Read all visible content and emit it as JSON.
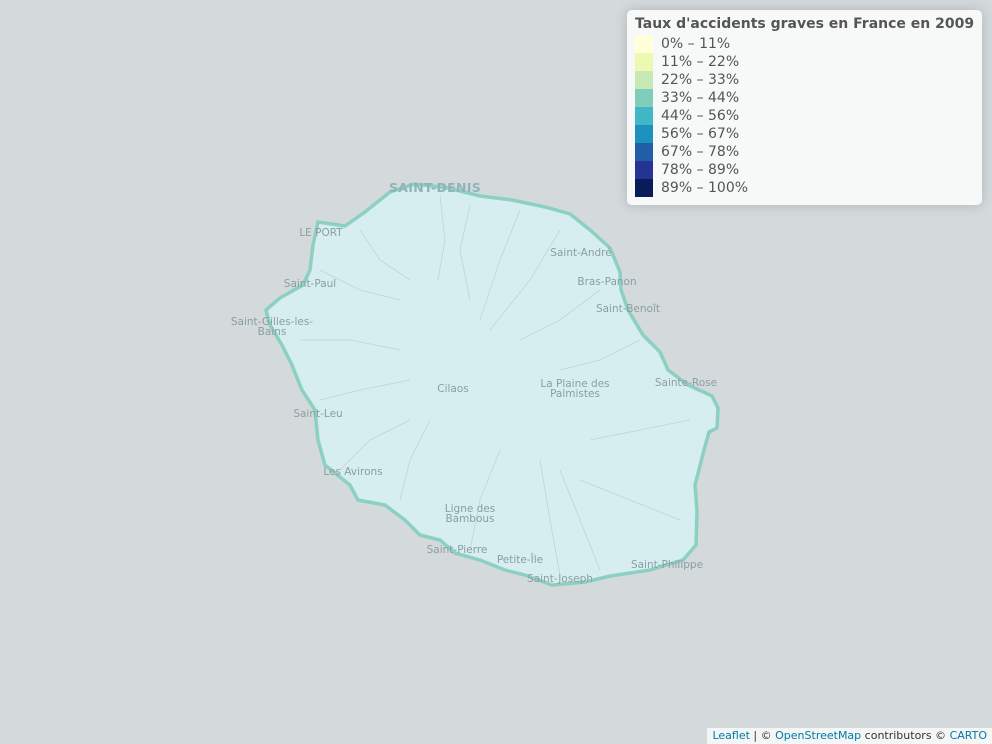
{
  "legend": {
    "title": "Taux d'accidents graves en France en 2009",
    "entries": [
      {
        "label": "0% – 11%",
        "color": "#ffffd9"
      },
      {
        "label": "11% – 22%",
        "color": "#edf8b1"
      },
      {
        "label": "22% – 33%",
        "color": "#c7e9b4"
      },
      {
        "label": "33% – 44%",
        "color": "#7fcdbb"
      },
      {
        "label": "44% – 56%",
        "color": "#41b6c4"
      },
      {
        "label": "56% – 67%",
        "color": "#1d91c0"
      },
      {
        "label": "67% – 78%",
        "color": "#225ea8"
      },
      {
        "label": "78% – 89%",
        "color": "#253494"
      },
      {
        "label": "89% – 100%",
        "color": "#081d58"
      }
    ]
  },
  "region": {
    "fill_color": "#d7eef0",
    "border_color": "#7fcdbb"
  },
  "places": {
    "saint_denis": "SAINT-DENIS",
    "le_port": "LE PORT",
    "saint_andre": "Saint-André",
    "saint_paul": "Saint-Paul",
    "bras_panon": "Bras-Panon",
    "saint_gilles_1": "Saint-Gilles-les-",
    "saint_gilles_2": "Bains",
    "saint_benoit": "Saint-Benoît",
    "cilaos": "Cilaos",
    "plaine_1": "La Plaine des",
    "plaine_2": "Palmistes",
    "sainte_rose": "Sainte-Rose",
    "saint_leu": "Saint-Leu",
    "les_avirons": "Les Avirons",
    "ligne_1": "Ligne des",
    "ligne_2": "Bambous",
    "saint_pierre": "Saint-Pierre",
    "petite_ile": "Petite-Île",
    "saint_joseph": "Saint-Joseph",
    "saint_philippe": "Saint-Philippe"
  },
  "attribution": {
    "leaflet": "Leaflet",
    "sep": " | © ",
    "osm": "OpenStreetMap",
    "contributors": " contributors © ",
    "carto": "CARTO"
  }
}
